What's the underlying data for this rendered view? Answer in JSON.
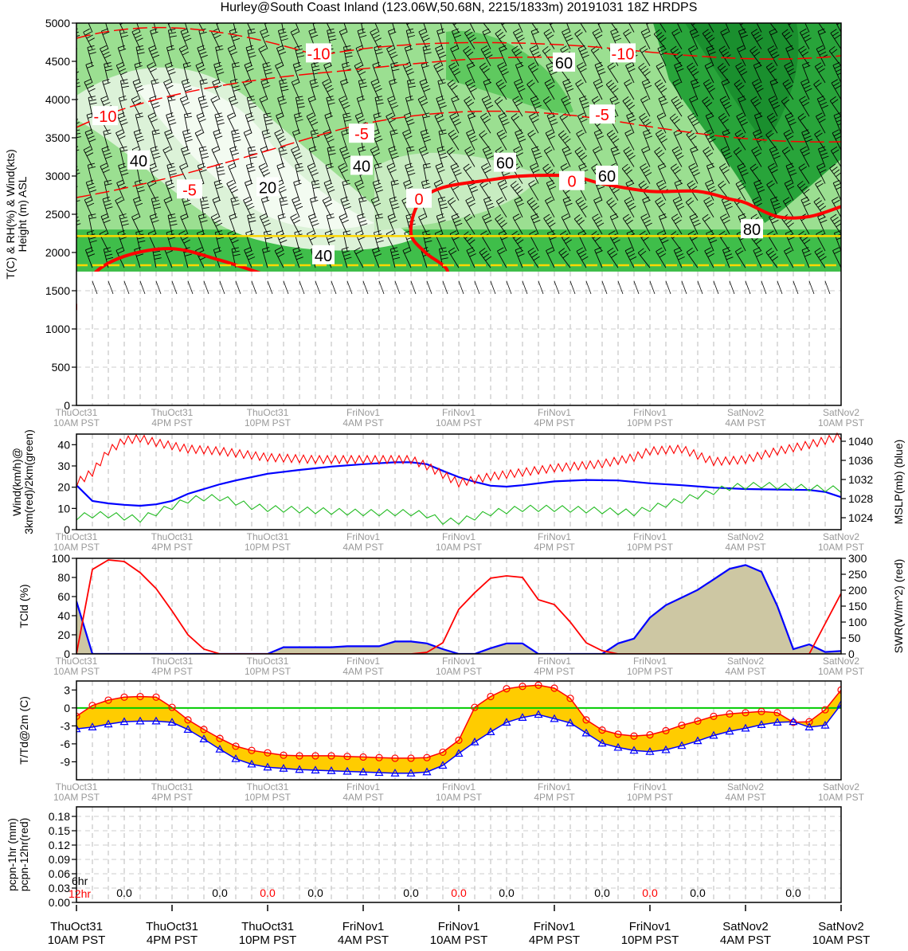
{
  "title": "Hurley@South Coast Inland (123.06W,50.68N, 2215/1833m)  20191031  18Z  HRDPS",
  "colors": {
    "temperature": "#ff0000",
    "dewpoint": "#0000ff",
    "wind_3km": "#ff0000",
    "wind_2km": "#22bb22",
    "mslp": "#0000ff",
    "tcld_fill": "#cdc7a3",
    "t_td_fill": "#ffcc00",
    "zero_line": "#00cc00",
    "elevation_line": "#ffd700",
    "rh_fill_light": "#e8f7e6",
    "rh_fill_dark": "#17a331",
    "axis_gray": "#999999"
  },
  "time_labels": [
    {
      "day": "ThuOct31",
      "time": "10AM PST"
    },
    {
      "day": "ThuOct31",
      "time": "4PM PST"
    },
    {
      "day": "ThuOct31",
      "time": "10PM PST"
    },
    {
      "day": "FriNov1",
      "time": "4AM PST"
    },
    {
      "day": "FriNov1",
      "time": "10AM PST"
    },
    {
      "day": "FriNov1",
      "time": "4PM PST"
    },
    {
      "day": "FriNov1",
      "time": "10PM PST"
    },
    {
      "day": "SatNov2",
      "time": "4AM PST"
    },
    {
      "day": "SatNov2",
      "time": "10AM PST"
    }
  ],
  "chart_data": [
    {
      "type": "heatmap",
      "panel": "cross-section",
      "ylabel": "T(C) & RH(%) & Wind(kts)\nHeight (m) ASL",
      "ylim": [
        0,
        5000
      ],
      "yticks": [
        0,
        500,
        1000,
        1500,
        2000,
        2500,
        3000,
        3500,
        4000,
        4500,
        5000
      ],
      "x_hours": [
        0,
        48
      ],
      "terrain_top_m": 1750,
      "station_elevation_m": 2215,
      "model_elevation_m": 1833,
      "zero_isotherm": {
        "x": [
          0,
          1,
          3,
          6,
          9,
          12,
          15,
          17,
          19.5,
          21.5,
          22.3,
          23.3,
          21.9,
          21,
          21.5,
          23,
          26,
          28,
          31,
          33,
          36,
          39,
          41,
          42,
          44,
          46,
          48
        ],
        "y": [
          1250,
          1700,
          1950,
          2050,
          1900,
          1700,
          1500,
          1450,
          1400,
          1400,
          1450,
          1750,
          2000,
          2250,
          2650,
          2850,
          2950,
          3000,
          3000,
          2900,
          2800,
          2800,
          2700,
          2650,
          2470,
          2470,
          2600
        ]
      },
      "isotherm_labels": [
        {
          "text": "-10",
          "x": 15.2,
          "y": 4600
        },
        {
          "text": "-10",
          "x": 34.3,
          "y": 4600
        },
        {
          "text": "-10",
          "x": 1.8,
          "y": 3780
        },
        {
          "text": "-5",
          "x": 17.9,
          "y": 3550
        },
        {
          "text": "-5",
          "x": 33.0,
          "y": 3800
        },
        {
          "text": "-5",
          "x": 7.1,
          "y": 2820
        },
        {
          "text": "0",
          "x": 21.5,
          "y": 2700
        },
        {
          "text": "0",
          "x": 31.1,
          "y": 2930
        }
      ],
      "rh_labels": [
        {
          "text": "40",
          "x": 3.9,
          "y": 3200
        },
        {
          "text": "20",
          "x": 12.0,
          "y": 2850
        },
        {
          "text": "40",
          "x": 17.9,
          "y": 3130
        },
        {
          "text": "40",
          "x": 15.5,
          "y": 1960
        },
        {
          "text": "60",
          "x": 26.9,
          "y": 3170
        },
        {
          "text": "60",
          "x": 30.6,
          "y": 4480
        },
        {
          "text": "60",
          "x": 33.3,
          "y": 3000
        },
        {
          "text": "80",
          "x": 42.4,
          "y": 2300
        }
      ]
    },
    {
      "type": "line",
      "panel": "wind-mslp",
      "ylabel": "Wind(km/h)@\n3km(red)/2km(green)",
      "ylabel_right": "MSLP(mb) (blue)",
      "ylim": [
        0,
        45
      ],
      "yticks": [
        0,
        10,
        20,
        30,
        40
      ],
      "ylim_right": [
        1021.5,
        1041.5
      ],
      "yticks_right": [
        1024,
        1028,
        1032,
        1036,
        1040
      ],
      "series": [
        {
          "axis": "left",
          "x": [
            0,
            1,
            2,
            3,
            4,
            5,
            7,
            9,
            12,
            15,
            18,
            21,
            22,
            24,
            26,
            28,
            30,
            33,
            35,
            36,
            38,
            40,
            42,
            44,
            46,
            48
          ],
          "values": [
            22,
            27,
            37,
            42,
            43,
            41,
            38,
            37,
            34,
            33,
            33,
            33,
            30,
            22,
            25,
            27,
            29,
            31,
            34,
            37,
            38,
            32,
            33,
            37,
            40,
            44
          ]
        },
        {
          "axis": "left",
          "x": [
            0,
            1,
            2,
            3,
            4,
            5,
            6,
            7,
            8,
            9,
            10,
            11,
            12,
            15,
            18,
            21,
            22,
            23,
            24,
            25,
            26,
            28,
            30,
            33,
            35,
            37,
            39,
            41,
            43,
            45,
            48
          ],
          "values": [
            6,
            7,
            7,
            6,
            5,
            8,
            11,
            14,
            15,
            15,
            13,
            11,
            10,
            9,
            8,
            8,
            7,
            4,
            4,
            6,
            8,
            10,
            10,
            9,
            8,
            12,
            16,
            20,
            21,
            20,
            19
          ]
        },
        {
          "axis": "right",
          "x": [
            0,
            1,
            2,
            3,
            4,
            5,
            6,
            7,
            8,
            9,
            10,
            12,
            14,
            16,
            18,
            20,
            21,
            22,
            23,
            24,
            25,
            26,
            27,
            28,
            30,
            32,
            34,
            36,
            38,
            40,
            42,
            44,
            46,
            47,
            48
          ],
          "values": [
            1030.8,
            1027.5,
            1027.0,
            1026.7,
            1026.5,
            1026.8,
            1027.5,
            1029.0,
            1030.0,
            1031.0,
            1031.8,
            1033.2,
            1034.0,
            1034.7,
            1035.2,
            1035.6,
            1035.6,
            1035.2,
            1033.8,
            1032.5,
            1031.5,
            1030.7,
            1030.5,
            1030.8,
            1031.6,
            1031.9,
            1031.8,
            1031.2,
            1030.8,
            1030.3,
            1030.0,
            1029.9,
            1029.8,
            1029.4,
            1028.3
          ]
        }
      ]
    },
    {
      "type": "area",
      "panel": "tcld-swr",
      "ylabel": "TCld (%)",
      "ylabel_right": "SWR(W/m^2) (red)",
      "ylim": [
        0,
        100
      ],
      "yticks": [
        0,
        20,
        40,
        60,
        80,
        100
      ],
      "ylim_right": [
        0,
        300
      ],
      "yticks_right": [
        0,
        50,
        100,
        150,
        200,
        250,
        300
      ],
      "series": [
        {
          "axis": "left",
          "x": [
            0,
            1,
            2,
            3,
            4,
            5,
            6,
            7,
            8,
            9,
            10,
            11,
            12,
            13,
            14,
            15,
            16,
            17,
            18,
            19,
            20,
            21,
            22,
            23,
            24,
            25,
            26,
            27,
            28,
            29,
            30,
            31,
            32,
            33,
            34,
            35,
            36,
            37,
            38,
            39,
            40,
            41,
            42,
            43,
            44,
            45,
            46,
            47,
            48
          ],
          "values": [
            55,
            0,
            0,
            0,
            0,
            0,
            0,
            0,
            0,
            0,
            0,
            0,
            0,
            7,
            7,
            7,
            7,
            8,
            8,
            8,
            13,
            13,
            11,
            5,
            0,
            0,
            6,
            11,
            11,
            0,
            0,
            0,
            0,
            0,
            11,
            16,
            38,
            51,
            59,
            67,
            78,
            89,
            93,
            86,
            50,
            5,
            10,
            2,
            3
          ]
        },
        {
          "axis": "right",
          "x": [
            0,
            1,
            2,
            3,
            4,
            5,
            6,
            7,
            8,
            9,
            10,
            11,
            12,
            13,
            14,
            15,
            16,
            17,
            18,
            19,
            20,
            21,
            22,
            23,
            24,
            25,
            26,
            27,
            28,
            29,
            30,
            31,
            32,
            33,
            34,
            35,
            36,
            37,
            38,
            39,
            40,
            41,
            42,
            43,
            44,
            45,
            46,
            47,
            48
          ],
          "values": [
            0,
            265,
            295,
            290,
            255,
            205,
            135,
            60,
            15,
            0,
            0,
            0,
            0,
            0,
            0,
            0,
            0,
            0,
            0,
            0,
            0,
            0,
            5,
            35,
            140,
            192,
            238,
            245,
            240,
            170,
            155,
            100,
            35,
            10,
            0,
            0,
            0,
            0,
            0,
            0,
            0,
            0,
            0,
            0,
            0,
            0,
            0,
            95,
            190
          ]
        }
      ]
    },
    {
      "type": "line",
      "panel": "t-td",
      "ylabel": "T/Td@2m (C)",
      "ylim": [
        -12,
        4.5
      ],
      "yticks": [
        -9,
        -6,
        -3,
        0,
        3
      ],
      "zero_line": 0,
      "series": [
        {
          "x": [
            0,
            1,
            2,
            3,
            4,
            5,
            6,
            7,
            8,
            9,
            10,
            11,
            12,
            13,
            14,
            15,
            16,
            17,
            18,
            19,
            20,
            21,
            22,
            23,
            24,
            25,
            26,
            27,
            28,
            29,
            30,
            31,
            32,
            33,
            34,
            35,
            36,
            37,
            38,
            39,
            40,
            41,
            42,
            43,
            44,
            45,
            46,
            47,
            48
          ],
          "values": [
            -1.4,
            0.4,
            1.3,
            1.8,
            1.9,
            1.8,
            0.1,
            -2.0,
            -3.6,
            -5.1,
            -6.4,
            -7.1,
            -7.5,
            -7.9,
            -8.0,
            -8.0,
            -8.0,
            -8.1,
            -8.2,
            -8.3,
            -8.4,
            -8.4,
            -8.3,
            -7.4,
            -5.4,
            0.1,
            1.9,
            3.2,
            3.6,
            3.8,
            3.3,
            1.6,
            -2.0,
            -3.7,
            -4.4,
            -4.7,
            -4.5,
            -3.8,
            -2.9,
            -2.2,
            -1.4,
            -1.0,
            -0.8,
            -0.6,
            -0.8,
            -2.4,
            -2.3,
            -0.3,
            3.0
          ]
        },
        {
          "x": [
            0,
            1,
            2,
            3,
            4,
            5,
            6,
            7,
            8,
            9,
            10,
            11,
            12,
            13,
            14,
            15,
            16,
            17,
            18,
            19,
            20,
            21,
            22,
            23,
            24,
            25,
            26,
            27,
            28,
            29,
            30,
            31,
            32,
            33,
            34,
            35,
            36,
            37,
            38,
            39,
            40,
            41,
            42,
            43,
            44,
            45,
            46,
            47,
            48
          ],
          "values": [
            -3.5,
            -3.2,
            -2.7,
            -2.3,
            -2.2,
            -2.2,
            -2.4,
            -3.6,
            -5.2,
            -6.9,
            -8.5,
            -9.4,
            -9.9,
            -10.1,
            -10.3,
            -10.4,
            -10.5,
            -10.6,
            -10.7,
            -10.8,
            -10.9,
            -10.9,
            -10.7,
            -9.6,
            -7.6,
            -5.7,
            -4.0,
            -2.4,
            -1.6,
            -1.1,
            -1.8,
            -2.5,
            -4.2,
            -5.9,
            -6.6,
            -7.1,
            -7.3,
            -7.0,
            -6.3,
            -5.5,
            -4.6,
            -3.9,
            -3.4,
            -2.8,
            -2.4,
            -2.3,
            -3.2,
            -2.9,
            0.6
          ]
        }
      ]
    },
    {
      "type": "bar",
      "panel": "precipitation",
      "ylabel": "pcpn-1hr (mm)\npcpn-12hr(red)",
      "ylim": [
        0,
        0.2
      ],
      "yticks": [
        "0.00",
        "0.03",
        "0.06",
        "0.09",
        "0.12",
        "0.15",
        "0.18"
      ],
      "label_6hr": "6hr",
      "label_12hr": "12hr",
      "pcpn_6hr": [
        {
          "x": 3,
          "text": "0.0"
        },
        {
          "x": 9,
          "text": "0.0"
        },
        {
          "x": 15,
          "text": "0.0"
        },
        {
          "x": 21,
          "text": "0.0"
        },
        {
          "x": 27,
          "text": "0.0"
        },
        {
          "x": 33,
          "text": "0.0"
        },
        {
          "x": 39,
          "text": "0.0"
        },
        {
          "x": 45,
          "text": "0.0"
        }
      ],
      "pcpn_12hr": [
        {
          "x": 12,
          "text": "0.0"
        },
        {
          "x": 24,
          "text": "0.0"
        },
        {
          "x": 36,
          "text": "0.0"
        }
      ]
    }
  ]
}
